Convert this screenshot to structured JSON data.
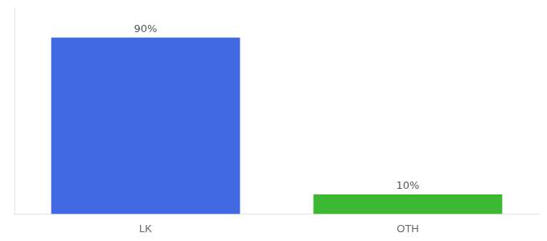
{
  "chart_data": {
    "type": "bar",
    "categories": [
      "LK",
      "OTH"
    ],
    "values": [
      90,
      10
    ],
    "value_labels": [
      "90%",
      "10%"
    ],
    "data_labels": true,
    "colors": [
      "#4169e1",
      "#3cb832"
    ],
    "ylim": [
      0,
      105
    ],
    "tick_labels": "x",
    "grid": false
  }
}
